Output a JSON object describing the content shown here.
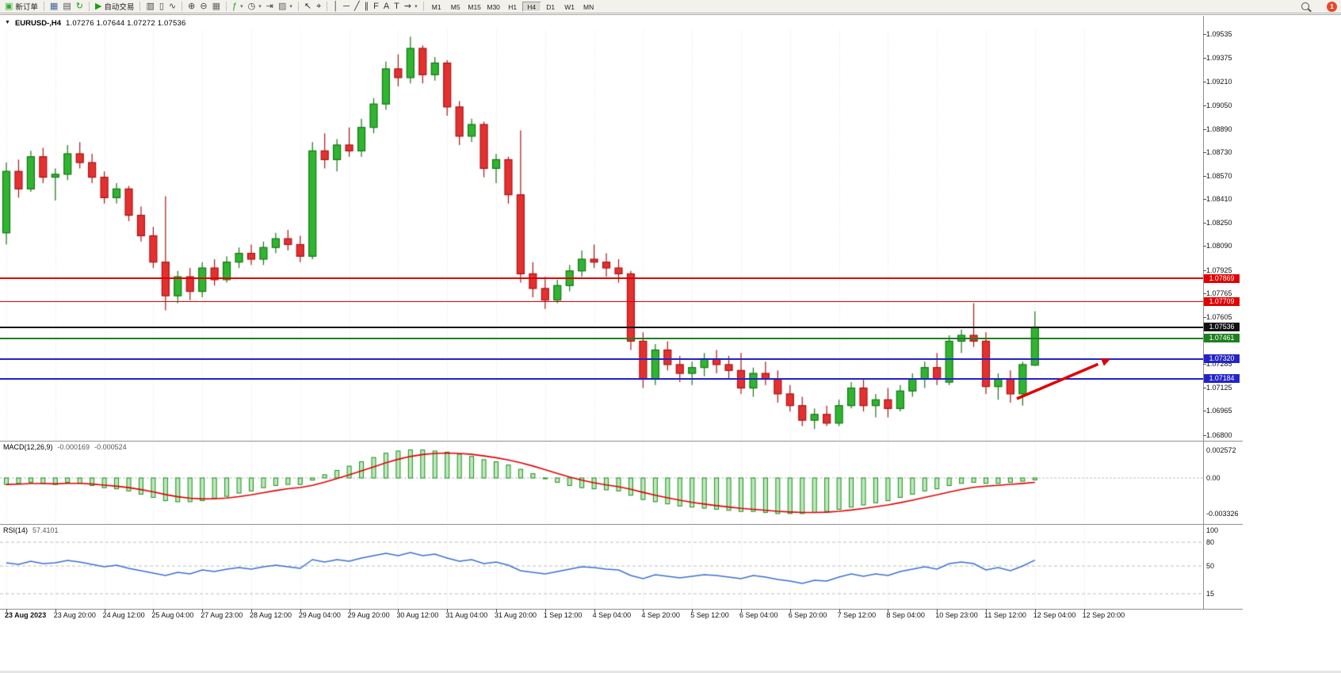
{
  "toolbar": {
    "groups": [
      {
        "items": [
          {
            "name": "new-order-button",
            "glyph": "▣",
            "glyph_color": "#2DB22D",
            "label": "新订单"
          }
        ]
      },
      {
        "items": [
          {
            "name": "charts-grid-icon",
            "glyph": "▦",
            "glyph_color": "#44619c"
          },
          {
            "name": "profiles-icon",
            "glyph": "▤",
            "glyph_color": "#555555"
          },
          {
            "name": "refresh-icon",
            "glyph": "↻",
            "glyph_color": "#18A018"
          }
        ]
      },
      {
        "items": [
          {
            "name": "autotrading-button",
            "glyph": "▶",
            "glyph_color": "#18A018",
            "label": "自动交易"
          }
        ]
      },
      {
        "items": [
          {
            "name": "bar-chart-type-icon",
            "glyph": "▥",
            "glyph_color": "#444444"
          },
          {
            "name": "candlestick-chart-type-icon",
            "glyph": "▯",
            "glyph_color": "#444444"
          },
          {
            "name": "line-chart-type-icon",
            "glyph": "∿",
            "glyph_color": "#444444"
          }
        ]
      },
      {
        "items": [
          {
            "name": "zoom-in-icon",
            "glyph": "⊕",
            "glyph_color": "#444444"
          },
          {
            "name": "zoom-out-icon",
            "glyph": "⊖",
            "glyph_color": "#444444"
          },
          {
            "name": "tile-windows-icon",
            "glyph": "▦",
            "glyph_color": "#666666"
          }
        ]
      },
      {
        "items": [
          {
            "name": "indicators-icon",
            "glyph": "ƒ",
            "glyph_color": "#18A018",
            "caret": true
          },
          {
            "name": "auto-scroll-icon",
            "glyph": "◷",
            "glyph_color": "#444444",
            "caret": true
          },
          {
            "name": "chart-shift-icon",
            "glyph": "⇥",
            "glyph_color": "#444444"
          },
          {
            "name": "templates-icon",
            "glyph": "▨",
            "glyph_color": "#666666",
            "caret": true
          }
        ]
      },
      {
        "items": [
          {
            "name": "cursor-icon",
            "glyph": "↖",
            "glyph_color": "#333333"
          },
          {
            "name": "crosshair-icon",
            "glyph": "⌖",
            "glyph_color": "#333333"
          }
        ]
      },
      {
        "items": [
          {
            "name": "vertical-line-icon",
            "glyph": "│",
            "glyph_color": "#333333"
          },
          {
            "name": "horizontal-line-icon",
            "glyph": "─",
            "glyph_color": "#333333"
          },
          {
            "name": "trendline-icon",
            "glyph": "╱",
            "glyph_color": "#333333"
          },
          {
            "name": "channel-icon",
            "glyph": "∥",
            "glyph_color": "#333333"
          },
          {
            "name": "fibonacci-icon",
            "glyph": "F",
            "glyph_color": "#333333"
          },
          {
            "name": "text-icon",
            "glyph": "A",
            "glyph_color": "#333333"
          },
          {
            "name": "text-label-icon",
            "glyph": "T",
            "glyph_color": "#333333"
          },
          {
            "name": "arrows-tool-icon",
            "glyph": "⇝",
            "glyph_color": "#333333",
            "caret": true
          }
        ]
      }
    ],
    "timeframes": [
      "M1",
      "M5",
      "M15",
      "M30",
      "H1",
      "H4",
      "D1",
      "W1",
      "MN"
    ],
    "active_timeframe": "H4",
    "notification_badge": "1"
  },
  "chart_header": {
    "symbol": "EURUSD-,H4",
    "ohlc": "1.07276 1.07644 1.07272 1.07536"
  },
  "price_axis": {
    "ticks": [
      "1.09535",
      "1.09375",
      "1.09210",
      "1.09050",
      "1.08890",
      "1.08730",
      "1.08570",
      "1.08410",
      "1.08250",
      "1.08090",
      "1.07925",
      "1.07765",
      "1.07605",
      "1.07285",
      "1.07125",
      "1.06965",
      "1.06800"
    ],
    "boxes": [
      {
        "value": "1.07869",
        "color": "#E00000"
      },
      {
        "value": "1.07709",
        "color": "#E00000"
      },
      {
        "value": "1.07536",
        "color": "#111111"
      },
      {
        "value": "1.07461",
        "color": "#1E7F1E"
      },
      {
        "value": "1.07320",
        "color": "#2323C8"
      },
      {
        "value": "1.07184",
        "color": "#2323C8"
      }
    ]
  },
  "hlines": [
    {
      "price": 1.07869,
      "color": "#E00000",
      "thickness": 1.5
    },
    {
      "price": 1.07709,
      "color": "#E00000",
      "thickness": 1.5
    },
    {
      "price": 1.07536,
      "color": "#111111",
      "thickness": 1.8
    },
    {
      "price": 1.07461,
      "color": "#1E7F1E",
      "thickness": 2
    },
    {
      "price": 1.0732,
      "color": "#2323C8",
      "thickness": 2
    },
    {
      "price": 1.07184,
      "color": "#2323C8",
      "thickness": 2
    }
  ],
  "time_axis": [
    "23 Aug 2023",
    "23 Aug 20:00",
    "24 Aug 12:00",
    "25 Aug 04:00",
    "27 Aug 23:00",
    "28 Aug 12:00",
    "29 Aug 04:00",
    "29 Aug 20:00",
    "30 Aug 12:00",
    "31 Aug 04:00",
    "31 Aug 20:00",
    "1 Sep 12:00",
    "4 Sep 04:00",
    "4 Sep 20:00",
    "5 Sep 12:00",
    "6 Sep 04:00",
    "6 Sep 20:00",
    "7 Sep 12:00",
    "8 Sep 04:00",
    "10 Sep 23:00",
    "11 Sep 12:00",
    "12 Sep 04:00",
    "12 Sep 20:00"
  ],
  "indicators": {
    "macd": {
      "name": "MACD(12,26,9)",
      "value_main": "-0.000169",
      "value_signal": "-0.000524",
      "axis": [
        {
          "label": "0.002572",
          "value": 0.002572
        },
        {
          "label": "0.00",
          "value": 0
        },
        {
          "label": "-0.003326",
          "value": -0.003326
        }
      ]
    },
    "rsi": {
      "name": "RSI(14)",
      "value": "57.4101",
      "axis": [
        {
          "label": "100",
          "value": 100
        },
        {
          "label": "80",
          "value": 80
        },
        {
          "label": "50",
          "value": 50
        },
        {
          "label": "15",
          "value": 15
        }
      ],
      "levels": [
        80,
        50,
        15
      ]
    }
  },
  "annotation": {
    "type": "arrow",
    "color": "#E00000",
    "from": [
      1283,
      503
    ],
    "to": [
      1391,
      457
    ]
  },
  "colors": {
    "candle_up": "#2FB52F",
    "candle_up_border": "#157515",
    "candle_down": "#E53030",
    "candle_down_border": "#A81414",
    "macd_histogram_fill": "#BFE8BF",
    "macd_histogram_border": "#189018",
    "macd_signal_line": "#E00000",
    "rsi_line": "#3A6FD0",
    "grid": "#E2E2E2",
    "level_dash": "#BDBDBD"
  },
  "chart_data": {
    "type": "candlestick",
    "symbol": "EURUSD-",
    "timeframe": "H4",
    "price_range": [
      1.0676,
      1.0957
    ],
    "candles": [
      [
        1.0818,
        1.0866,
        1.081,
        1.086
      ],
      [
        1.086,
        1.0868,
        1.0842,
        1.0848
      ],
      [
        1.0848,
        1.0874,
        1.0846,
        1.087
      ],
      [
        1.087,
        1.0876,
        1.0852,
        1.0856
      ],
      [
        1.0856,
        1.0862,
        1.084,
        1.0858
      ],
      [
        1.0858,
        1.0878,
        1.0854,
        1.0872
      ],
      [
        1.0872,
        1.088,
        1.0862,
        1.0866
      ],
      [
        1.0866,
        1.0872,
        1.0852,
        1.0856
      ],
      [
        1.0856,
        1.086,
        1.0838,
        1.0842
      ],
      [
        1.0842,
        1.0852,
        1.0838,
        1.0848
      ],
      [
        1.0848,
        1.085,
        1.0826,
        1.083
      ],
      [
        1.083,
        1.0836,
        1.0812,
        1.0816
      ],
      [
        1.0816,
        1.0822,
        1.0794,
        1.0798
      ],
      [
        1.0798,
        1.0843,
        1.0765,
        1.0775
      ],
      [
        1.0775,
        1.0792,
        1.077,
        1.0788
      ],
      [
        1.0788,
        1.0794,
        1.0772,
        1.0778
      ],
      [
        1.0778,
        1.0798,
        1.0774,
        1.0794
      ],
      [
        1.0794,
        1.08,
        1.0782,
        1.0786
      ],
      [
        1.0786,
        1.0802,
        1.0784,
        1.0798
      ],
      [
        1.0798,
        1.0808,
        1.0794,
        1.0804
      ],
      [
        1.0804,
        1.081,
        1.0796,
        1.08
      ],
      [
        1.08,
        1.0812,
        1.0796,
        1.0808
      ],
      [
        1.0808,
        1.0818,
        1.0804,
        1.0814
      ],
      [
        1.0814,
        1.082,
        1.0806,
        1.081
      ],
      [
        1.081,
        1.0816,
        1.0798,
        1.0802
      ],
      [
        1.0802,
        1.088,
        1.08,
        1.0874
      ],
      [
        1.0874,
        1.0886,
        1.0862,
        1.0868
      ],
      [
        1.0868,
        1.0882,
        1.086,
        1.0878
      ],
      [
        1.0878,
        1.089,
        1.087,
        1.0874
      ],
      [
        1.0874,
        1.0896,
        1.087,
        1.089
      ],
      [
        1.089,
        1.091,
        1.0886,
        1.0906
      ],
      [
        1.0906,
        1.0935,
        1.0902,
        1.093
      ],
      [
        1.093,
        1.094,
        1.0918,
        1.0924
      ],
      [
        1.0924,
        1.0952,
        1.092,
        1.0944
      ],
      [
        1.0944,
        1.0946,
        1.092,
        1.0926
      ],
      [
        1.0926,
        1.0938,
        1.0922,
        1.0934
      ],
      [
        1.0934,
        1.0936,
        1.0898,
        1.0904
      ],
      [
        1.0904,
        1.0908,
        1.0878,
        1.0884
      ],
      [
        1.0884,
        1.0896,
        1.088,
        1.0892
      ],
      [
        1.0892,
        1.0894,
        1.0856,
        1.0862
      ],
      [
        1.0862,
        1.0872,
        1.0852,
        1.0868
      ],
      [
        1.0868,
        1.087,
        1.0838,
        1.0844
      ],
      [
        1.0844,
        1.0888,
        1.0784,
        1.079
      ],
      [
        1.079,
        1.0798,
        1.0774,
        1.078
      ],
      [
        1.078,
        1.0788,
        1.0766,
        1.0772
      ],
      [
        1.0772,
        1.0786,
        1.077,
        1.0782
      ],
      [
        1.0782,
        1.0796,
        1.0778,
        1.0792
      ],
      [
        1.0792,
        1.0806,
        1.0788,
        1.08
      ],
      [
        1.08,
        1.081,
        1.0794,
        1.0798
      ],
      [
        1.0798,
        1.0804,
        1.0788,
        1.0794
      ],
      [
        1.0794,
        1.08,
        1.0784,
        1.079
      ],
      [
        1.079,
        1.0792,
        1.0738,
        1.0744
      ],
      [
        1.0744,
        1.075,
        1.0712,
        1.0718
      ],
      [
        1.0718,
        1.0742,
        1.0714,
        1.0738
      ],
      [
        1.0738,
        1.0744,
        1.0724,
        1.0728
      ],
      [
        1.0728,
        1.0734,
        1.0716,
        1.0722
      ],
      [
        1.0722,
        1.073,
        1.0714,
        1.0726
      ],
      [
        1.0726,
        1.0736,
        1.072,
        1.0732
      ],
      [
        1.0732,
        1.0738,
        1.0722,
        1.0728
      ],
      [
        1.0728,
        1.0734,
        1.0718,
        1.0724
      ],
      [
        1.0724,
        1.0736,
        1.0708,
        1.0712
      ],
      [
        1.0712,
        1.0726,
        1.0706,
        1.0722
      ],
      [
        1.0722,
        1.073,
        1.0714,
        1.0718
      ],
      [
        1.0718,
        1.0724,
        1.0702,
        1.0708
      ],
      [
        1.0708,
        1.0714,
        1.0696,
        1.07
      ],
      [
        1.07,
        1.0706,
        1.0686,
        1.069
      ],
      [
        1.069,
        1.0698,
        1.0684,
        1.0694
      ],
      [
        1.0694,
        1.07,
        1.0686,
        1.0688
      ],
      [
        1.0688,
        1.0704,
        1.0686,
        1.07
      ],
      [
        1.07,
        1.0716,
        1.0698,
        1.0712
      ],
      [
        1.0712,
        1.0718,
        1.0696,
        1.07
      ],
      [
        1.07,
        1.0708,
        1.0692,
        1.0704
      ],
      [
        1.0704,
        1.0712,
        1.0692,
        1.0698
      ],
      [
        1.0698,
        1.0714,
        1.0696,
        1.071
      ],
      [
        1.071,
        1.0722,
        1.0706,
        1.0718
      ],
      [
        1.0718,
        1.073,
        1.0712,
        1.0726
      ],
      [
        1.0726,
        1.0736,
        1.0714,
        1.0718
      ],
      [
        1.0716,
        1.0748,
        1.0714,
        1.0744
      ],
      [
        1.0744,
        1.0752,
        1.0736,
        1.0748
      ],
      [
        1.0748,
        1.077,
        1.074,
        1.0744
      ],
      [
        1.0744,
        1.075,
        1.0708,
        1.0713
      ],
      [
        1.0713,
        1.0722,
        1.0704,
        1.0718
      ],
      [
        1.0718,
        1.0724,
        1.0702,
        1.0708
      ],
      [
        1.0708,
        1.073,
        1.07,
        1.0728
      ],
      [
        1.07276,
        1.07644,
        1.07272,
        1.07536
      ]
    ],
    "macd_histogram": [
      -0.0006,
      -0.0005,
      -0.0004,
      -0.0005,
      -0.0006,
      -0.0004,
      -0.0005,
      -0.0007,
      -0.0009,
      -0.001,
      -0.0012,
      -0.0015,
      -0.0018,
      -0.0021,
      -0.0022,
      -0.0022,
      -0.0021,
      -0.0019,
      -0.0017,
      -0.0014,
      -0.0012,
      -0.0009,
      -0.0007,
      -0.0006,
      -0.0006,
      -0.0002,
      0.0003,
      0.0007,
      0.0011,
      0.0015,
      0.0019,
      0.0023,
      0.0025,
      0.0026,
      0.0026,
      0.0025,
      0.0024,
      0.0022,
      0.002,
      0.0017,
      0.0015,
      0.0012,
      0.0008,
      0.0004,
      0.0,
      -0.0004,
      -0.0007,
      -0.0009,
      -0.001,
      -0.0011,
      -0.0012,
      -0.0016,
      -0.002,
      -0.0022,
      -0.0024,
      -0.0026,
      -0.0027,
      -0.0028,
      -0.0029,
      -0.003,
      -0.0031,
      -0.0031,
      -0.0032,
      -0.0033,
      -0.0033,
      -0.0033,
      -0.0032,
      -0.0031,
      -0.0029,
      -0.0027,
      -0.0025,
      -0.0023,
      -0.0021,
      -0.0018,
      -0.0015,
      -0.0012,
      -0.001,
      -0.0007,
      -0.0005,
      -0.0004,
      -0.0005,
      -0.0005,
      -0.0004,
      -0.0003,
      -0.00017
    ],
    "rsi": [
      54,
      52,
      56,
      53,
      54,
      57,
      55,
      52,
      49,
      51,
      47,
      44,
      41,
      38,
      42,
      40,
      45,
      43,
      46,
      48,
      46,
      49,
      51,
      49,
      47,
      58,
      55,
      58,
      56,
      60,
      63,
      66,
      63,
      67,
      63,
      65,
      60,
      56,
      58,
      53,
      55,
      51,
      44,
      42,
      40,
      43,
      46,
      49,
      48,
      46,
      45,
      38,
      34,
      39,
      37,
      35,
      37,
      39,
      38,
      36,
      34,
      38,
      36,
      33,
      31,
      28,
      32,
      31,
      36,
      40,
      37,
      40,
      38,
      43,
      46,
      49,
      46,
      53,
      55,
      53,
      45,
      48,
      44,
      50,
      57.4
    ]
  }
}
